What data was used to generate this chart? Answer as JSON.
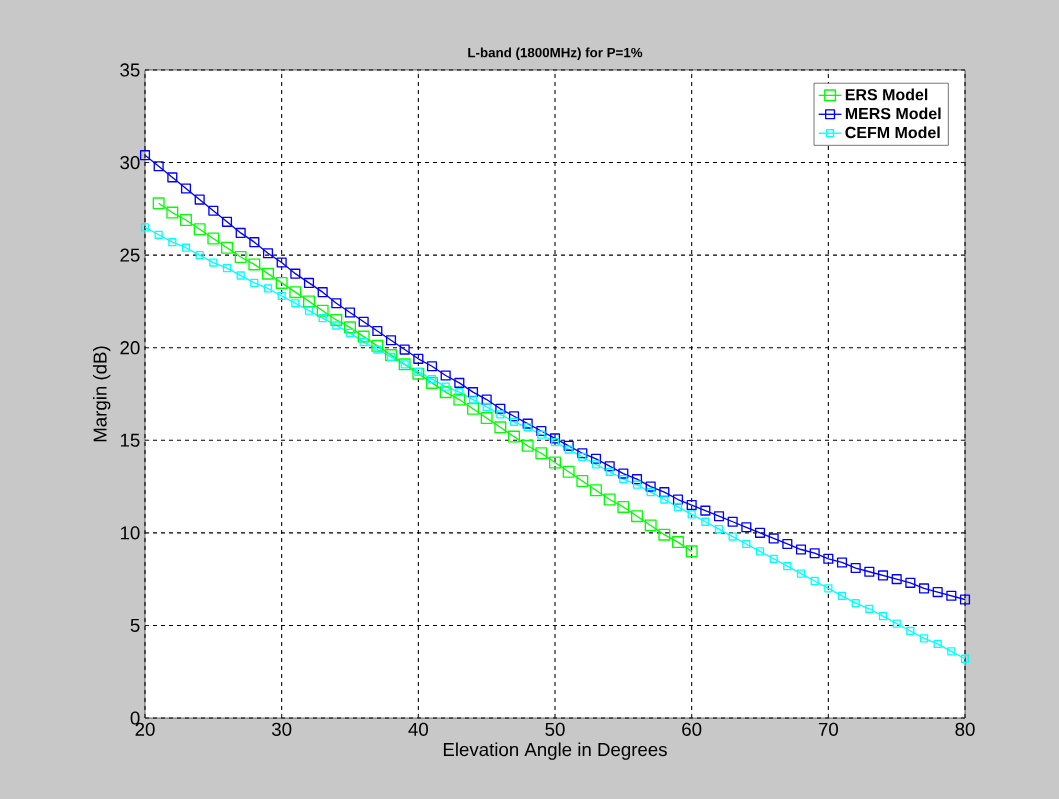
{
  "chart_data": {
    "type": "line",
    "title": "L-band (1800MHz) for P=1%",
    "xlabel": "Elevation Angle in Degrees",
    "ylabel": "Margin (dB)",
    "xlim": [
      20,
      80
    ],
    "ylim": [
      0,
      35
    ],
    "xticks": [
      20,
      30,
      40,
      50,
      60,
      70,
      80
    ],
    "yticks": [
      0,
      5,
      10,
      15,
      20,
      25,
      30,
      35
    ],
    "grid": true,
    "legend": "top right",
    "marker": "square",
    "line_style": "solid",
    "series": [
      {
        "name": "ERS    Model",
        "color": "#00ff00",
        "x": [
          21,
          22,
          23,
          24,
          25,
          26,
          27,
          28,
          29,
          30,
          31,
          32,
          33,
          34,
          35,
          36,
          37,
          38,
          39,
          40,
          41,
          42,
          43,
          44,
          45,
          46,
          47,
          48,
          49,
          50,
          51,
          52,
          53,
          54,
          55,
          56,
          57,
          58,
          59,
          60
        ],
        "values": [
          27.8,
          27.3,
          26.9,
          26.4,
          25.9,
          25.4,
          24.9,
          24.5,
          24.0,
          23.5,
          23.0,
          22.5,
          22.0,
          21.5,
          21.1,
          20.6,
          20.1,
          19.6,
          19.1,
          18.6,
          18.1,
          17.6,
          17.2,
          16.7,
          16.2,
          15.7,
          15.2,
          14.7,
          14.3,
          13.8,
          13.3,
          12.8,
          12.3,
          11.8,
          11.4,
          10.9,
          10.4,
          9.9,
          9.5,
          9.0
        ]
      },
      {
        "name": "MERS  Model",
        "color": "#0000ff",
        "x": [
          20,
          21,
          22,
          23,
          24,
          25,
          26,
          27,
          28,
          29,
          30,
          31,
          32,
          33,
          34,
          35,
          36,
          37,
          38,
          39,
          40,
          41,
          42,
          43,
          44,
          45,
          46,
          47,
          48,
          49,
          50,
          51,
          52,
          53,
          54,
          55,
          56,
          57,
          58,
          59,
          60,
          61,
          62,
          63,
          64,
          65,
          66,
          67,
          68,
          69,
          70,
          71,
          72,
          73,
          74,
          75,
          76,
          77,
          78,
          79,
          80
        ],
        "values": [
          30.4,
          29.8,
          29.2,
          28.6,
          28.0,
          27.4,
          26.8,
          26.2,
          25.7,
          25.1,
          24.6,
          24.0,
          23.5,
          23.0,
          22.4,
          21.9,
          21.4,
          20.9,
          20.4,
          19.9,
          19.4,
          19.0,
          18.5,
          18.1,
          17.6,
          17.2,
          16.7,
          16.3,
          15.9,
          15.5,
          15.1,
          14.7,
          14.3,
          14.0,
          13.6,
          13.2,
          12.9,
          12.5,
          12.2,
          11.8,
          11.5,
          11.2,
          10.9,
          10.6,
          10.3,
          10.0,
          9.7,
          9.4,
          9.1,
          8.9,
          8.6,
          8.4,
          8.1,
          7.9,
          7.7,
          7.5,
          7.3,
          7.0,
          6.8,
          6.6,
          6.4
        ]
      },
      {
        "name": "CEFM  Model",
        "color": "#00ffff",
        "x": [
          20,
          21,
          22,
          23,
          24,
          25,
          26,
          27,
          28,
          29,
          30,
          31,
          32,
          33,
          34,
          35,
          36,
          37,
          38,
          39,
          40,
          41,
          42,
          43,
          44,
          45,
          46,
          47,
          48,
          49,
          50,
          51,
          52,
          53,
          54,
          55,
          56,
          57,
          58,
          59,
          60,
          61,
          62,
          63,
          64,
          65,
          66,
          67,
          68,
          69,
          70,
          71,
          72,
          73,
          74,
          75,
          76,
          77,
          78,
          79,
          80
        ],
        "values": [
          26.5,
          26.1,
          25.7,
          25.4,
          25.0,
          24.6,
          24.3,
          23.9,
          23.5,
          23.2,
          22.8,
          22.4,
          22.0,
          21.6,
          21.2,
          20.8,
          20.3,
          19.9,
          19.5,
          19.1,
          18.7,
          18.3,
          17.9,
          17.6,
          17.2,
          16.8,
          16.4,
          16.0,
          15.7,
          15.3,
          14.9,
          14.5,
          14.1,
          13.7,
          13.3,
          12.9,
          12.6,
          12.2,
          11.8,
          11.4,
          11.0,
          10.6,
          10.2,
          9.8,
          9.4,
          9.0,
          8.6,
          8.2,
          7.8,
          7.4,
          7.0,
          6.6,
          6.2,
          5.9,
          5.5,
          5.1,
          4.7,
          4.3,
          4.0,
          3.6,
          3.2
        ]
      }
    ]
  }
}
